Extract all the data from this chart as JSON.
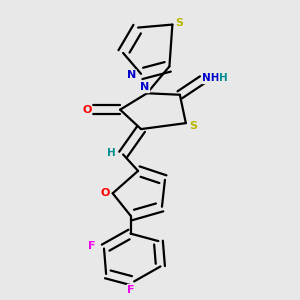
{
  "background_color": "#e8e8e8",
  "atom_colors": {
    "C": "#000000",
    "N": "#0000cc",
    "O": "#ff0000",
    "S": "#b8b800",
    "F": "#ee00ee",
    "H": "#009090"
  },
  "bond_color": "#000000",
  "figsize": [
    3.0,
    3.0
  ],
  "dpi": 100,
  "lw": 1.6
}
